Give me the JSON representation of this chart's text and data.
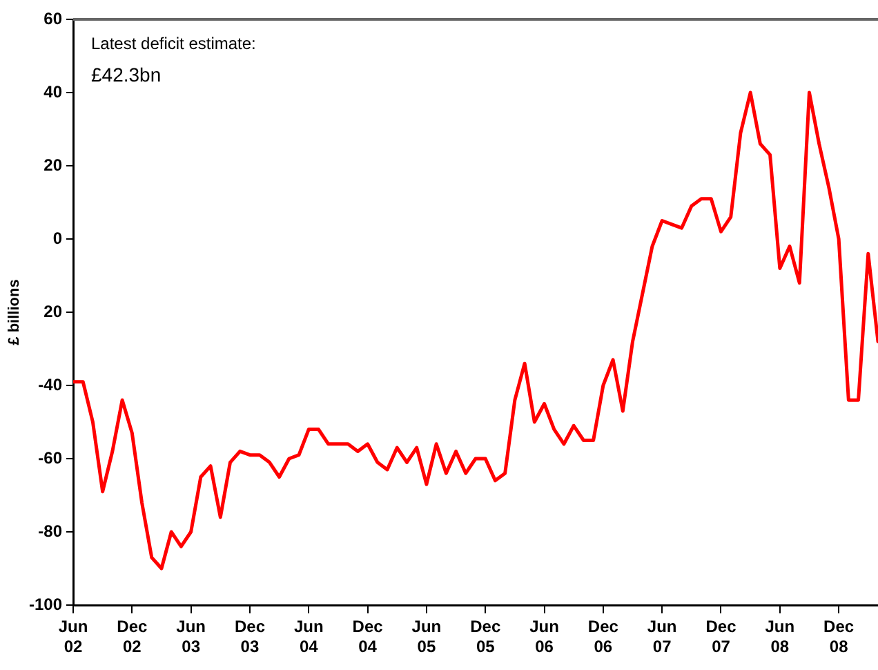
{
  "chart_data": {
    "type": "line",
    "ylabel": "£ billions",
    "annotations": [
      "Latest deficit estimate:",
      "£42.3bn"
    ],
    "x": [
      "2002-06",
      "2002-07",
      "2002-08",
      "2002-09",
      "2002-10",
      "2002-11",
      "2002-12",
      "2003-01",
      "2003-02",
      "2003-03",
      "2003-04",
      "2003-05",
      "2003-06",
      "2003-07",
      "2003-08",
      "2003-09",
      "2003-10",
      "2003-11",
      "2003-12",
      "2004-01",
      "2004-02",
      "2004-03",
      "2004-04",
      "2004-05",
      "2004-06",
      "2004-07",
      "2004-08",
      "2004-09",
      "2004-10",
      "2004-11",
      "2004-12",
      "2005-01",
      "2005-02",
      "2005-03",
      "2005-04",
      "2005-05",
      "2005-06",
      "2005-07",
      "2005-08",
      "2005-09",
      "2005-10",
      "2005-11",
      "2005-12",
      "2006-01",
      "2006-02",
      "2006-03",
      "2006-04",
      "2006-05",
      "2006-06",
      "2006-07",
      "2006-08",
      "2006-09",
      "2006-10",
      "2006-11",
      "2006-12",
      "2007-01",
      "2007-02",
      "2007-03",
      "2007-04",
      "2007-05",
      "2007-06",
      "2007-07",
      "2007-08",
      "2007-09",
      "2007-10",
      "2007-11",
      "2007-12",
      "2008-01",
      "2008-02",
      "2008-03",
      "2008-04",
      "2008-05",
      "2008-06",
      "2008-07",
      "2008-08",
      "2008-09",
      "2008-10",
      "2008-11",
      "2008-12",
      "2009-01",
      "2009-02",
      "2009-03",
      "2009-04"
    ],
    "series": [
      {
        "color": "#ff0000",
        "values": [
          -39,
          -39,
          -50,
          -69,
          -58,
          -44,
          -53,
          -72,
          -87,
          -90,
          -80,
          -84,
          -80,
          -65,
          -62,
          -76,
          -61,
          -58,
          -59,
          -59,
          -61,
          -65,
          -60,
          -59,
          -52,
          -52,
          -56,
          -56,
          -56,
          -58,
          -56,
          -61,
          -63,
          -57,
          -61,
          -57,
          -67,
          -56,
          -64,
          -58,
          -64,
          -60,
          -60,
          -66,
          -64,
          -44,
          -34,
          -50,
          -45,
          -52,
          -56,
          -51,
          -55,
          -55,
          -40,
          -33,
          -47,
          -28,
          -15,
          -2,
          5,
          4,
          3,
          9,
          11,
          11,
          2,
          6,
          29,
          40,
          26,
          23,
          -8,
          -2,
          -12,
          40,
          26,
          14,
          0,
          -44,
          -44,
          -4,
          -28
        ]
      }
    ],
    "xlim": [
      "2002-06",
      "2009-04"
    ],
    "xticks": [
      {
        "value": "2002-06",
        "label": "Jun 02"
      },
      {
        "value": "2002-12",
        "label": "Dec 02"
      },
      {
        "value": "2003-06",
        "label": "Jun 03"
      },
      {
        "value": "2003-12",
        "label": "Dec 03"
      },
      {
        "value": "2004-06",
        "label": "Jun 04"
      },
      {
        "value": "2004-12",
        "label": "Dec 04"
      },
      {
        "value": "2005-06",
        "label": "Jun 05"
      },
      {
        "value": "2005-12",
        "label": "Dec 05"
      },
      {
        "value": "2006-06",
        "label": "Jun 06"
      },
      {
        "value": "2006-12",
        "label": "Dec 06"
      },
      {
        "value": "2007-06",
        "label": "Jun 07"
      },
      {
        "value": "2007-12",
        "label": "Dec 07"
      },
      {
        "value": "2008-06",
        "label": "Jun 08"
      },
      {
        "value": "2008-12",
        "label": "Dec 08"
      }
    ],
    "ylim": [
      -100,
      60
    ],
    "yticks": [
      60,
      40,
      20,
      0,
      {
        "value": -20,
        "label": "20"
      },
      -40,
      -60,
      -80,
      -100
    ],
    "grid": false,
    "legend": false,
    "marker": "none",
    "line_style": "solid"
  }
}
